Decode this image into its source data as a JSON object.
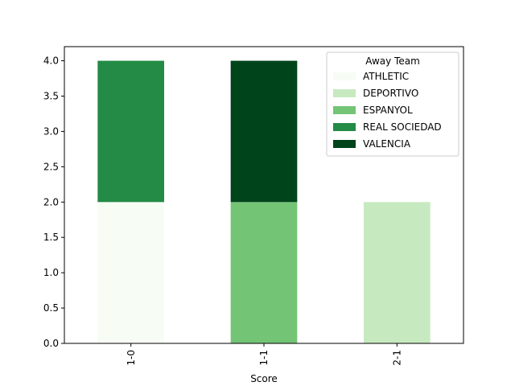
{
  "chart_data": {
    "type": "bar",
    "stacked": true,
    "title": "",
    "xlabel": "Score",
    "ylabel": "",
    "categories": [
      "1-0",
      "1-1",
      "2-1"
    ],
    "ylim": [
      0,
      4.2
    ],
    "yticks": [
      0.0,
      0.5,
      1.0,
      1.5,
      2.0,
      2.5,
      3.0,
      3.5,
      4.0
    ],
    "ytick_labels": [
      "0.0",
      "0.5",
      "1.0",
      "1.5",
      "2.0",
      "2.5",
      "3.0",
      "3.5",
      "4.0"
    ],
    "grid": false,
    "legend": {
      "title": "Away Team",
      "placement": "top-right"
    },
    "series": [
      {
        "name": "ATHLETIC",
        "color": "#f7fcf5",
        "values": [
          2,
          0,
          0
        ]
      },
      {
        "name": "DEPORTIVO",
        "color": "#c7e9c0",
        "values": [
          0,
          0,
          2
        ]
      },
      {
        "name": "ESPANYOL",
        "color": "#74c476",
        "values": [
          0,
          2,
          0
        ]
      },
      {
        "name": "REAL SOCIEDAD",
        "color": "#238b45",
        "values": [
          2,
          0,
          0
        ]
      },
      {
        "name": "VALENCIA",
        "color": "#00441b",
        "values": [
          0,
          2,
          0
        ]
      }
    ]
  }
}
